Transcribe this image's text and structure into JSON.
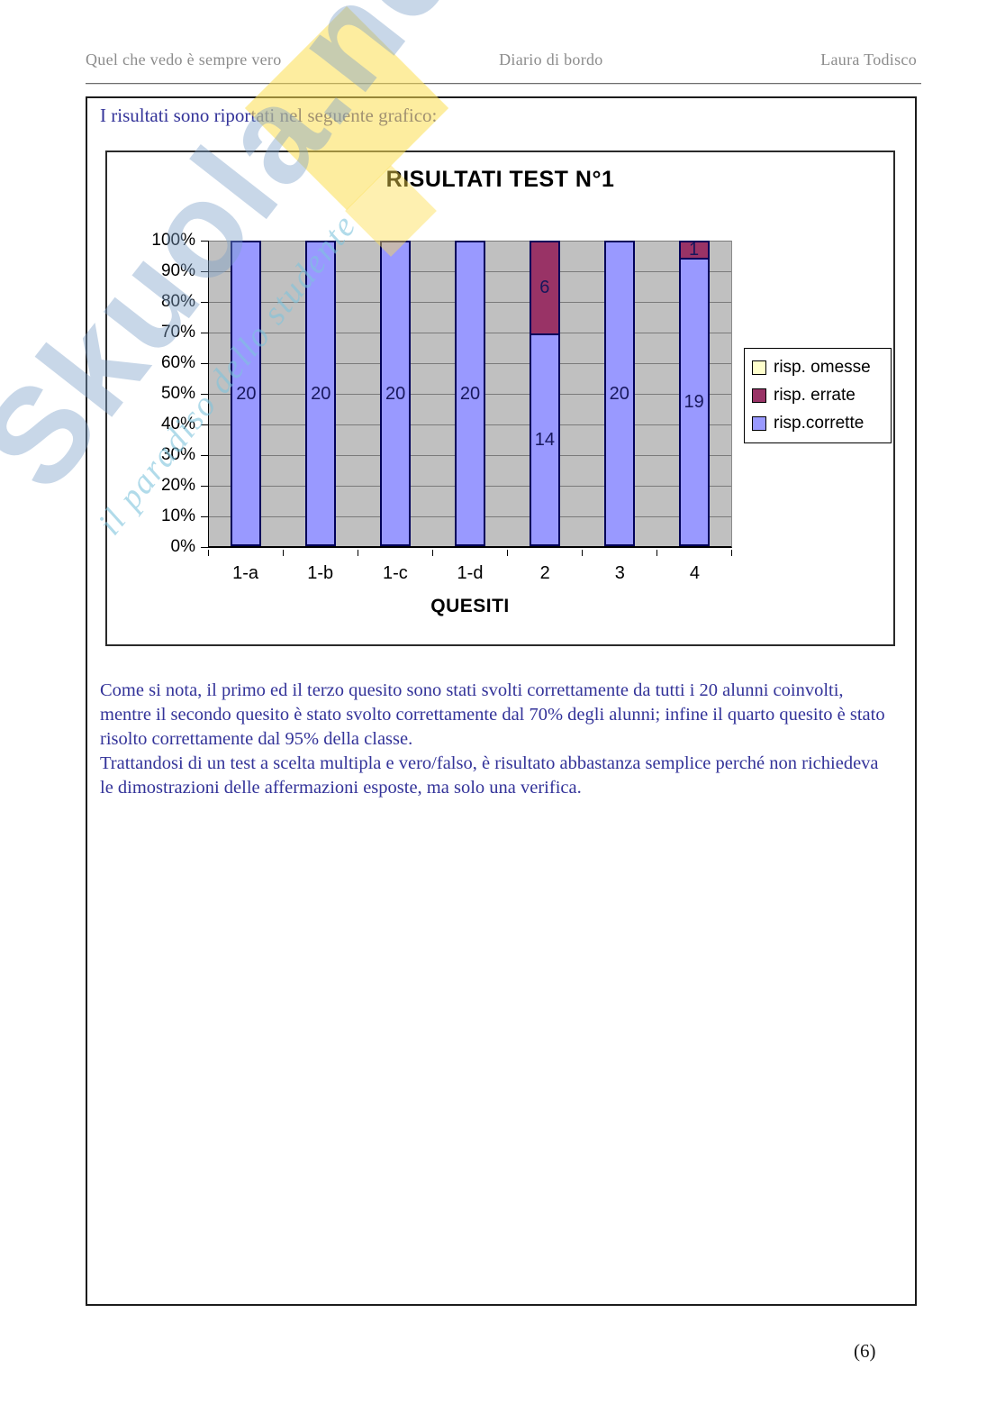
{
  "header": {
    "left": "Quel che vedo è sempre vero",
    "center": "Diario di bordo",
    "right": "Laura Todisco"
  },
  "intro_text": "I risultati sono riportati nel seguente grafico:",
  "watermark": {
    "brand": "Skuola.net",
    "tagline": "il paradiso dello studente"
  },
  "chart_data": {
    "type": "bar",
    "variant": "stacked-percent-column",
    "title": "RISULTATI TEST N°1",
    "xlabel": "QUESITI",
    "categories": [
      "1-a",
      "1-b",
      "1-c",
      "1-d",
      "2",
      "3",
      "4"
    ],
    "total_per_category": 20,
    "series": [
      {
        "name": "risp.corrette",
        "color": "#9999ff",
        "values": [
          20,
          20,
          20,
          20,
          14,
          20,
          19
        ]
      },
      {
        "name": "risp. errate",
        "color": "#993366",
        "values": [
          0,
          0,
          0,
          0,
          6,
          0,
          1
        ]
      },
      {
        "name": "risp. omesse",
        "color": "#ffffcc",
        "values": [
          0,
          0,
          0,
          0,
          0,
          0,
          0
        ]
      }
    ],
    "y_ticks": [
      "100%",
      "90%",
      "80%",
      "70%",
      "60%",
      "50%",
      "40%",
      "30%",
      "20%",
      "10%",
      "0%"
    ],
    "ylim": [
      "0%",
      "100%"
    ],
    "grid": true,
    "legend_position": "right",
    "legend_order": [
      "risp. omesse",
      "risp. errate",
      "risp.corrette"
    ],
    "colors": {
      "plot_bg": "#c0c0c0",
      "gridline": "#7a7a7a",
      "bar_border": "#00005a"
    }
  },
  "paragraphs": [
    "Come si nota, il primo ed il terzo quesito sono stati svolti correttamente da tutti i 20 alunni coinvolti, mentre il secondo quesito è stato svolto correttamente dal 70% degli alunni; infine il quarto quesito è stato risolto correttamente dal 95% della classe.",
    "Trattandosi di un test a scelta multipla e vero/falso, è risultato abbastanza semplice perché non richiedeva le dimostrazioni delle affermazioni esposte, ma solo una verifica."
  ],
  "page_number": "(6)"
}
